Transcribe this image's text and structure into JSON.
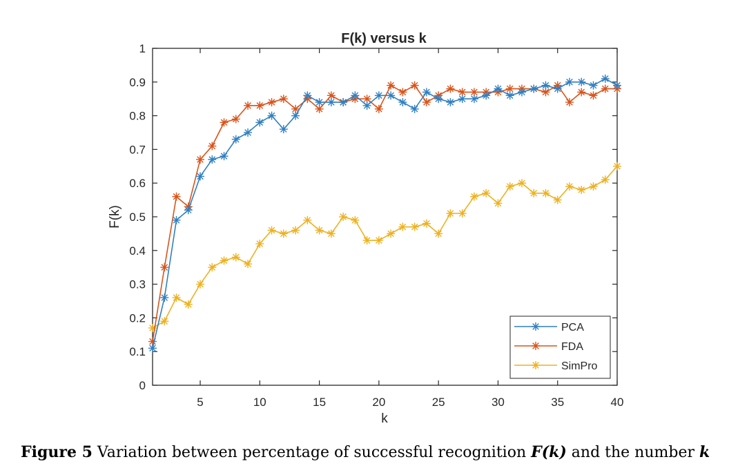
{
  "caption": {
    "label": "Figure 5",
    "text_before": " Variation between percentage of successful recognition ",
    "math_symbol": "F(k)",
    "text_after": " and the number ",
    "math_var": "k"
  },
  "chart_data": {
    "type": "line",
    "title": "F(k) versus k",
    "xlabel": "k",
    "ylabel": "F(k)",
    "xlim": [
      1,
      40
    ],
    "ylim": [
      0,
      1
    ],
    "xticks": [
      "5",
      "10",
      "15",
      "20",
      "25",
      "30",
      "35",
      "40"
    ],
    "yticks": [
      "0",
      "0.1",
      "0.2",
      "0.3",
      "0.4",
      "0.5",
      "0.6",
      "0.7",
      "0.8",
      "0.9",
      "1"
    ],
    "grid": false,
    "legend_position": "bottom-right",
    "marker": "asterisk",
    "x": [
      1,
      2,
      3,
      4,
      5,
      6,
      7,
      8,
      9,
      10,
      11,
      12,
      13,
      14,
      15,
      16,
      17,
      18,
      19,
      20,
      21,
      22,
      23,
      24,
      25,
      26,
      27,
      28,
      29,
      30,
      31,
      32,
      33,
      34,
      35,
      36,
      37,
      38,
      39,
      40
    ],
    "series": [
      {
        "name": "PCA",
        "color": "#2f7fc1",
        "values": [
          0.11,
          0.26,
          0.49,
          0.52,
          0.62,
          0.67,
          0.68,
          0.73,
          0.75,
          0.78,
          0.8,
          0.76,
          0.8,
          0.86,
          0.84,
          0.84,
          0.84,
          0.86,
          0.83,
          0.86,
          0.86,
          0.84,
          0.82,
          0.87,
          0.85,
          0.84,
          0.85,
          0.85,
          0.86,
          0.88,
          0.86,
          0.87,
          0.88,
          0.89,
          0.88,
          0.9,
          0.9,
          0.89,
          0.91,
          0.89
        ]
      },
      {
        "name": "FDA",
        "color": "#d95319",
        "values": [
          0.13,
          0.35,
          0.56,
          0.53,
          0.67,
          0.71,
          0.78,
          0.79,
          0.83,
          0.83,
          0.84,
          0.85,
          0.82,
          0.85,
          0.82,
          0.86,
          0.84,
          0.85,
          0.85,
          0.82,
          0.89,
          0.87,
          0.89,
          0.84,
          0.86,
          0.88,
          0.87,
          0.87,
          0.87,
          0.87,
          0.88,
          0.88,
          0.88,
          0.87,
          0.89,
          0.84,
          0.87,
          0.86,
          0.88,
          0.88
        ]
      },
      {
        "name": "SimPro",
        "color": "#edb120",
        "values": [
          0.17,
          0.19,
          0.26,
          0.24,
          0.3,
          0.35,
          0.37,
          0.38,
          0.36,
          0.42,
          0.46,
          0.45,
          0.46,
          0.49,
          0.46,
          0.45,
          0.5,
          0.49,
          0.43,
          0.43,
          0.45,
          0.47,
          0.47,
          0.48,
          0.45,
          0.51,
          0.51,
          0.56,
          0.57,
          0.54,
          0.59,
          0.6,
          0.57,
          0.57,
          0.55,
          0.59,
          0.58,
          0.59,
          0.61,
          0.65
        ]
      }
    ]
  }
}
